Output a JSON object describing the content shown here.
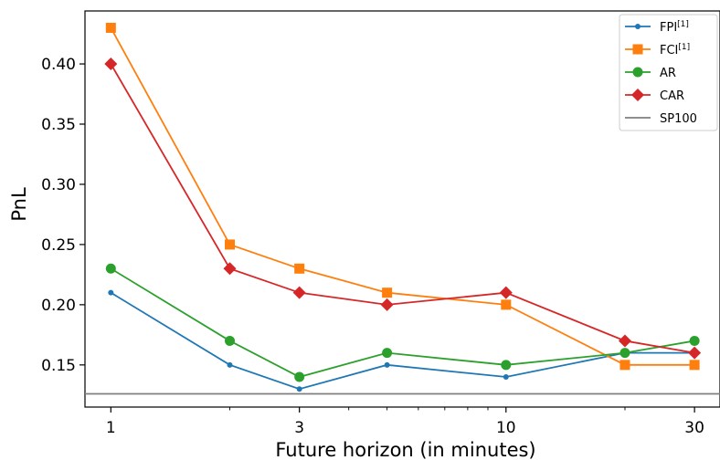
{
  "chart_data": {
    "type": "line",
    "title": "",
    "xlabel": "Future horizon (in minutes)",
    "ylabel": "PnL",
    "xscale": "log",
    "x": [
      1,
      2,
      3,
      5,
      10,
      20,
      30
    ],
    "xticks": [
      1,
      3,
      10,
      30
    ],
    "xtick_labels": [
      "1",
      "3",
      "10",
      "30"
    ],
    "yticks": [
      0.15,
      0.2,
      0.25,
      0.3,
      0.35,
      0.4
    ],
    "ytick_labels": [
      "0.15",
      "0.20",
      "0.25",
      "0.30",
      "0.35",
      "0.40"
    ],
    "ylim": [
      0.115,
      0.444
    ],
    "xlim": [
      0.86,
      34.8
    ],
    "legend_position": "top-right",
    "grid": false,
    "series": [
      {
        "name": "FPI",
        "superscript": "[1]",
        "color": "#1f77b4",
        "marker": "dot",
        "values": [
          0.21,
          0.15,
          0.13,
          0.15,
          0.14,
          0.16,
          0.16
        ]
      },
      {
        "name": "FCI",
        "superscript": "[1]",
        "color": "#ff7f0e",
        "marker": "square",
        "values": [
          0.43,
          0.25,
          0.23,
          0.21,
          0.2,
          0.15,
          0.15
        ]
      },
      {
        "name": "AR",
        "superscript": "",
        "color": "#2ca02c",
        "marker": "circle",
        "values": [
          0.23,
          0.17,
          0.14,
          0.16,
          0.15,
          0.16,
          0.17
        ]
      },
      {
        "name": "CAR",
        "superscript": "",
        "color": "#d62728",
        "marker": "diamond",
        "values": [
          0.4,
          0.23,
          0.21,
          0.2,
          0.21,
          0.17,
          0.16
        ]
      }
    ],
    "hlines": [
      {
        "name": "SP100",
        "color": "#7f7f7f",
        "value": 0.126
      }
    ]
  }
}
